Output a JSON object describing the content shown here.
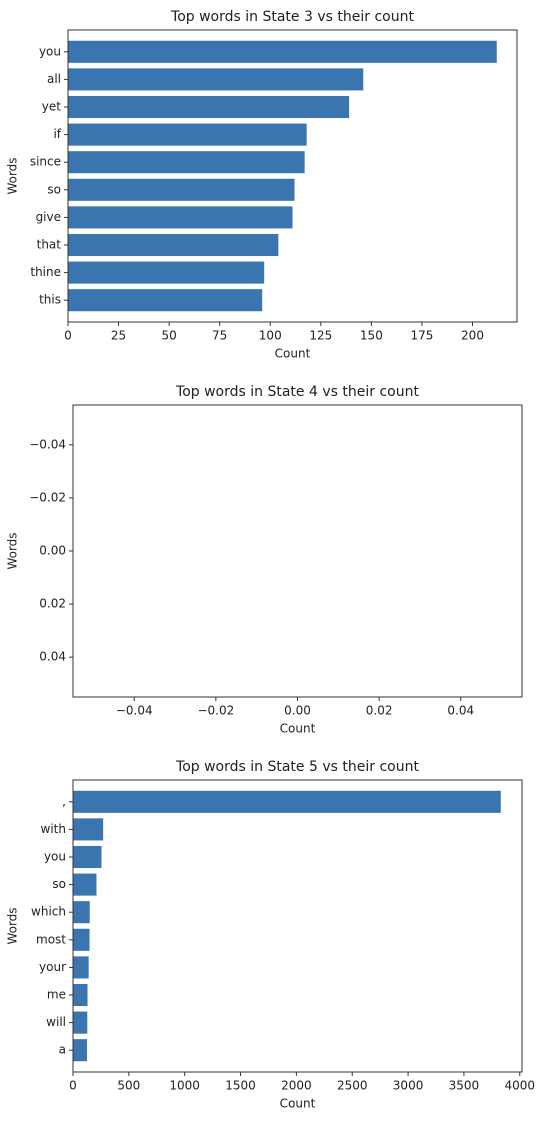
{
  "colors": {
    "bar": "#3a75b0",
    "axis": "#333333",
    "background": "#ffffff"
  },
  "chart_data": [
    {
      "type": "bar",
      "orientation": "horizontal",
      "title": "Top words in State 3 vs their count",
      "xlabel": "Count",
      "ylabel": "Words",
      "categories": [
        "you",
        "all",
        "yet",
        "if",
        "since",
        "so",
        "give",
        "that",
        "thine",
        "this"
      ],
      "values": [
        212,
        146,
        139,
        118,
        117,
        112,
        111,
        104,
        97,
        96
      ],
      "xlim": [
        0,
        222
      ],
      "xticks": [
        0,
        25,
        50,
        75,
        100,
        125,
        150,
        175,
        200
      ],
      "xtick_labels": [
        "0",
        "25",
        "50",
        "75",
        "100",
        "125",
        "150",
        "175",
        "200"
      ],
      "grid": false
    },
    {
      "type": "bar",
      "orientation": "horizontal",
      "title": "Top words in State 4 vs their count",
      "xlabel": "Count",
      "ylabel": "Words",
      "categories": [],
      "values": [],
      "xlim": [
        -0.055,
        0.055
      ],
      "ylim": [
        -0.055,
        0.055
      ],
      "xticks": [
        -0.04,
        -0.02,
        0.0,
        0.02,
        0.04
      ],
      "xtick_labels": [
        "−0.04",
        "−0.02",
        "0.00",
        "0.02",
        "0.04"
      ],
      "yticks": [
        -0.04,
        -0.02,
        0.0,
        0.02,
        0.04
      ],
      "ytick_labels": [
        "−0.04",
        "−0.02",
        "0.00",
        "0.02",
        "0.04"
      ],
      "y_inverted": true,
      "grid": false
    },
    {
      "type": "bar",
      "orientation": "horizontal",
      "title": "Top words in State 5 vs their count",
      "xlabel": "Count",
      "ylabel": "Words",
      "categories": [
        ",",
        "with",
        "you",
        "so",
        "which",
        "most",
        "your",
        "me",
        "will",
        "a"
      ],
      "values": [
        3830,
        270,
        255,
        210,
        150,
        148,
        140,
        130,
        128,
        125
      ],
      "xlim": [
        0,
        4020
      ],
      "xticks": [
        0,
        500,
        1000,
        1500,
        2000,
        2500,
        3000,
        3500,
        4000
      ],
      "xtick_labels": [
        "0",
        "500",
        "1000",
        "1500",
        "2000",
        "2500",
        "3000",
        "3500",
        "4000"
      ],
      "grid": false
    }
  ]
}
